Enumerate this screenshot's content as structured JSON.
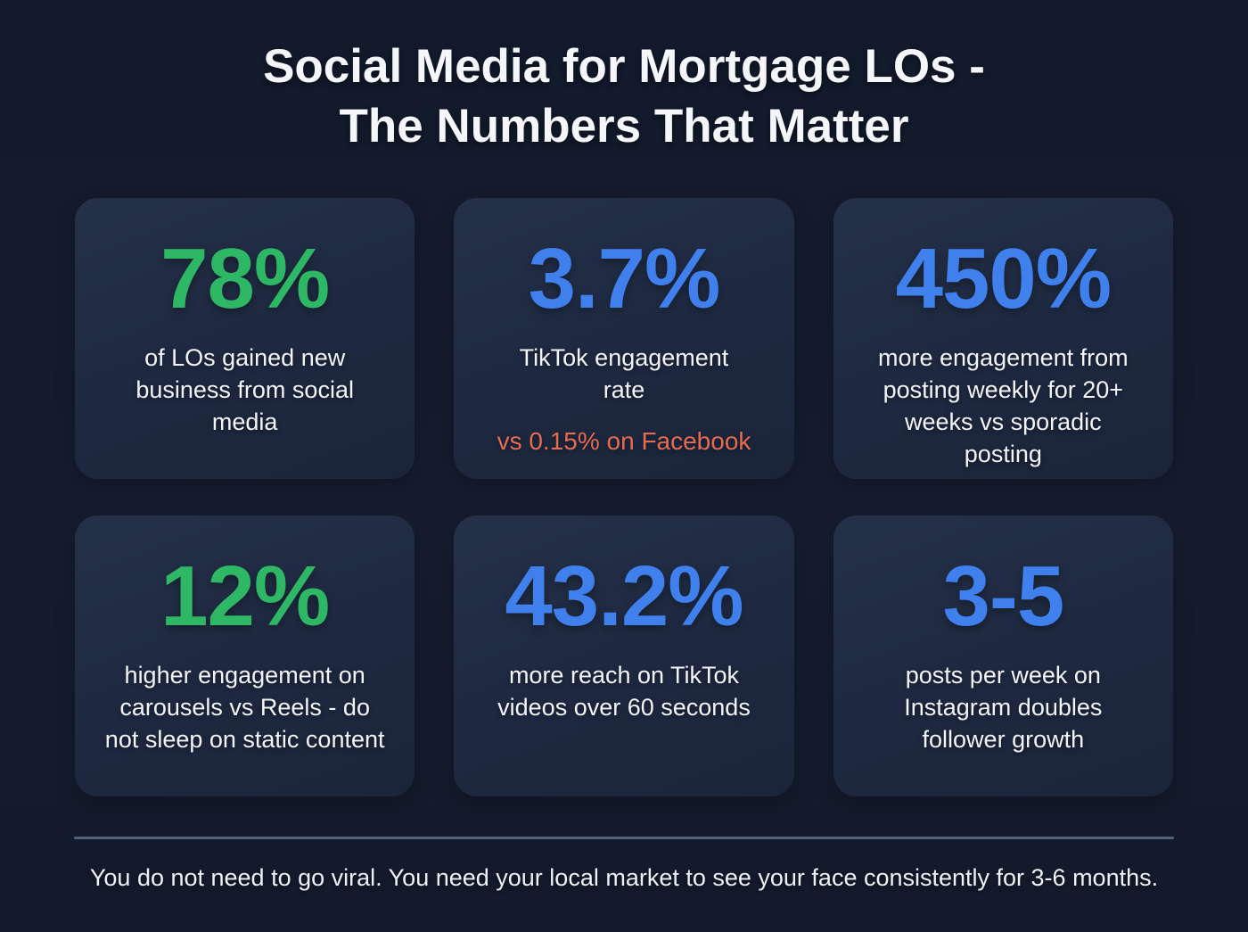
{
  "title": "Social Media for Mortgage LOs -\nThe Numbers That Matter",
  "colors": {
    "background": "#131b2d",
    "card_background": "#1e2941",
    "green_accent": "#2eb765",
    "blue_accent": "#3f80ed",
    "orange_accent": "#e56b51",
    "text": "#f3f5f8",
    "divider": "#51627a"
  },
  "cards": [
    {
      "value": "78%",
      "value_color": "#2eb765",
      "description": "of LOs gained new\nbusiness from social\nmedia"
    },
    {
      "value": "3.7%",
      "value_color": "#3f80ed",
      "description": "TikTok engagement\nrate",
      "subnote": "vs 0.15% on Facebook",
      "subnote_color": "#e56b51"
    },
    {
      "value": "450%",
      "value_color": "#3f80ed",
      "description": "more engagement from\nposting weekly for 20+\nweeks vs sporadic\nposting"
    },
    {
      "value": "12%",
      "value_color": "#2eb765",
      "description": "higher engagement on\ncarousels vs Reels - do\nnot sleep on static content"
    },
    {
      "value": "43.2%",
      "value_color": "#3f80ed",
      "description": "more reach on TikTok\nvideos over 60 seconds"
    },
    {
      "value": "3-5",
      "value_color": "#3f80ed",
      "description": "posts per week on\nInstagram doubles\nfollower growth"
    }
  ],
  "footer": {
    "text": "You do not need to go viral. You need your local market to see your face consistently for 3-6 months."
  },
  "chart_data": {
    "type": "table",
    "title": "Social Media for Mortgage LOs - The Numbers That Matter",
    "stats": [
      {
        "value": "78%",
        "label": "of LOs gained new business from social media",
        "color": "green"
      },
      {
        "value": "3.7%",
        "label": "TikTok engagement rate",
        "note": "vs 0.15% on Facebook",
        "color": "blue"
      },
      {
        "value": "450%",
        "label": "more engagement from posting weekly for 20+ weeks vs sporadic posting",
        "color": "blue"
      },
      {
        "value": "12%",
        "label": "higher engagement on carousels vs Reels - do not sleep on static content",
        "color": "green"
      },
      {
        "value": "43.2%",
        "label": "more reach on TikTok videos over 60 seconds",
        "color": "blue"
      },
      {
        "value": "3-5",
        "label": "posts per week on Instagram doubles follower growth",
        "color": "blue"
      }
    ],
    "footnote": "You do not need to go viral. You need your local market to see your face consistently for 3-6 months."
  }
}
